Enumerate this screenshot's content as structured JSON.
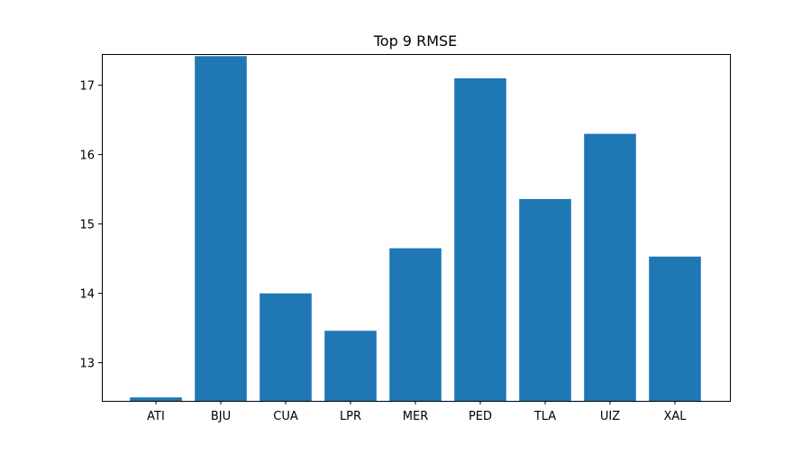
{
  "chart_data": {
    "type": "bar",
    "title": "Top 9 RMSE",
    "xlabel": "",
    "ylabel": "",
    "categories": [
      "ATI",
      "BJU",
      "CUA",
      "LPR",
      "MER",
      "PED",
      "TLA",
      "UIZ",
      "XAL"
    ],
    "values": [
      12.5,
      17.42,
      14.0,
      13.46,
      14.65,
      17.1,
      15.36,
      16.3,
      14.53
    ],
    "ylim": [
      12.45,
      17.45
    ],
    "yticks": [
      13,
      14,
      15,
      16,
      17
    ],
    "grid": false,
    "legend": "none",
    "bar_color": "#1f77b4"
  }
}
